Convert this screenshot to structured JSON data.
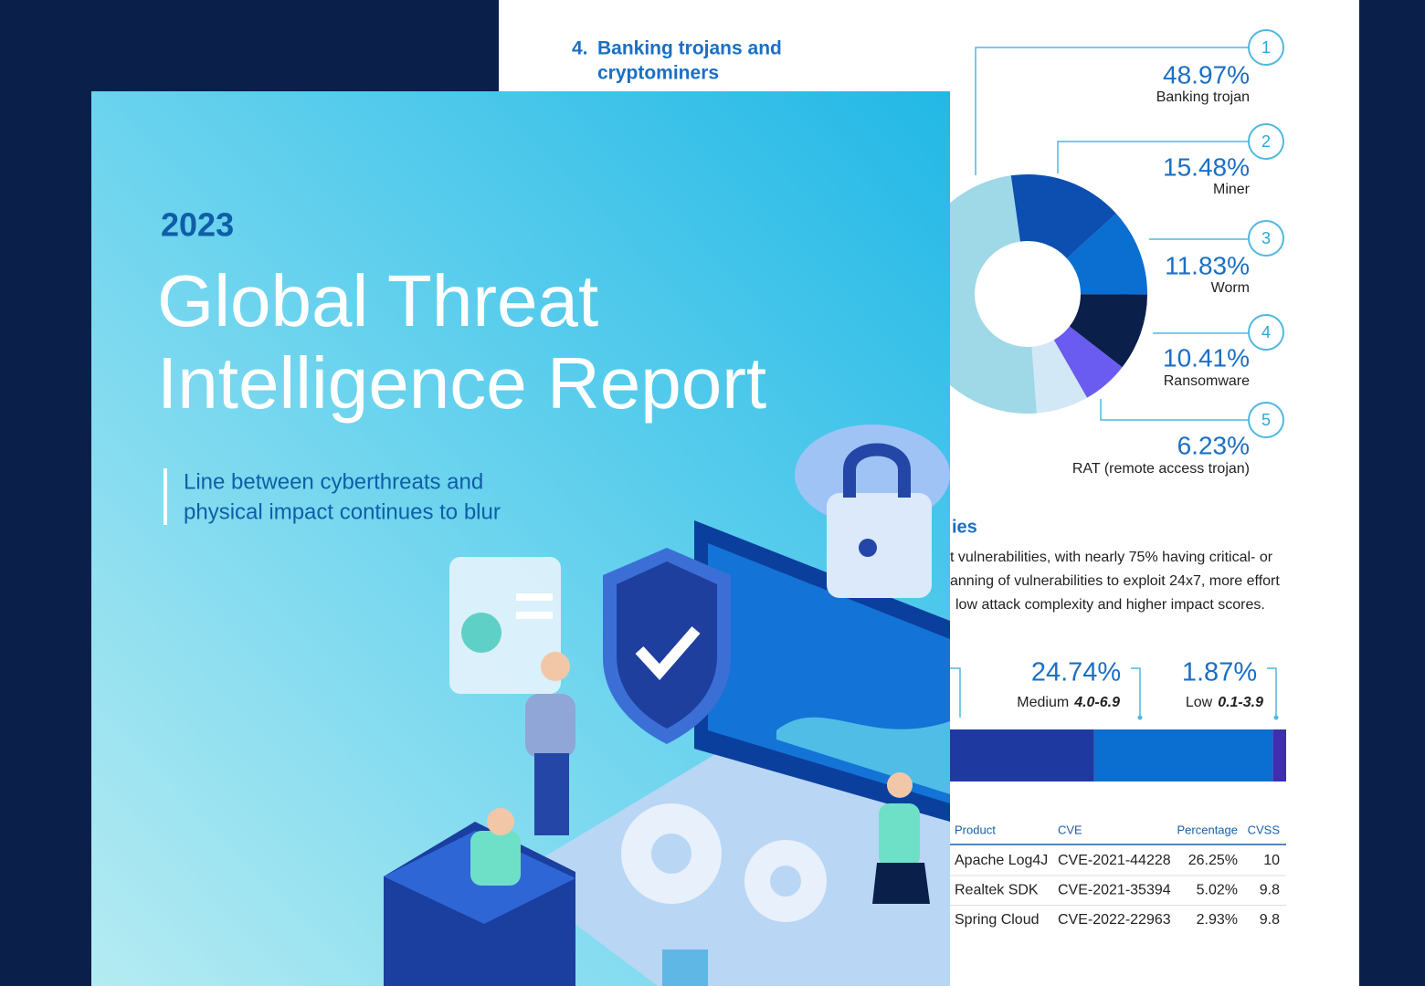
{
  "report_page": {
    "section_number": "4.",
    "section_title_lines": [
      "Banking trojans and",
      "cryptominers"
    ],
    "donut": {
      "items": [
        {
          "marker": 1,
          "value": 48.97,
          "value_label": "48.97%",
          "name": "Banking trojan",
          "color": "#9fd8e6"
        },
        {
          "marker": 2,
          "value": 15.48,
          "value_label": "15.48%",
          "name": "Miner",
          "color": "#0d4fb0"
        },
        {
          "marker": 3,
          "value": 11.83,
          "value_label": "11.83%",
          "name": "Worm",
          "color": "#0a6fd1"
        },
        {
          "marker": 4,
          "value": 10.41,
          "value_label": "10.41%",
          "name": "Ransomware",
          "color": "#0b1f4b"
        },
        {
          "marker": 5,
          "value": 6.23,
          "value_label": "6.23%",
          "name": "RAT (remote access trojan)",
          "color": "#6a5cf0"
        }
      ]
    },
    "vuln_heading_fragment": "ies",
    "vuln_text_lines": [
      "t vulnerabilities, with nearly 75% having critical- or",
      "anning of vulnerabilities to exploit 24x7, more effort",
      "low attack complexity and higher impact scores."
    ],
    "severity": [
      {
        "value": 24.74,
        "value_label": "24.74%",
        "name": "Medium",
        "range": "4.0-6.9",
        "color": "#0a6fd1"
      },
      {
        "value": 1.87,
        "value_label": "1.87%",
        "name": "Low",
        "range": "0.1-3.9",
        "color": "#3d2fb0"
      }
    ],
    "table": {
      "header": [
        "Product",
        "CVE",
        "Percentage",
        "CVSS"
      ],
      "rows": [
        [
          "Apache Log4J",
          "CVE-2021-44228",
          "26.25%",
          "10"
        ],
        [
          "Realtek SDK",
          "CVE-2021-35394",
          "5.02%",
          "9.8"
        ],
        [
          "Spring Cloud",
          "CVE-2022-22963",
          "2.93%",
          "9.8"
        ]
      ]
    }
  },
  "cover": {
    "year": "2023",
    "title_lines": [
      "Global Threat",
      "Intelligence Report"
    ],
    "subtitle_lines": [
      "Line between cyberthreats and",
      "physical impact continues to blur"
    ]
  }
}
